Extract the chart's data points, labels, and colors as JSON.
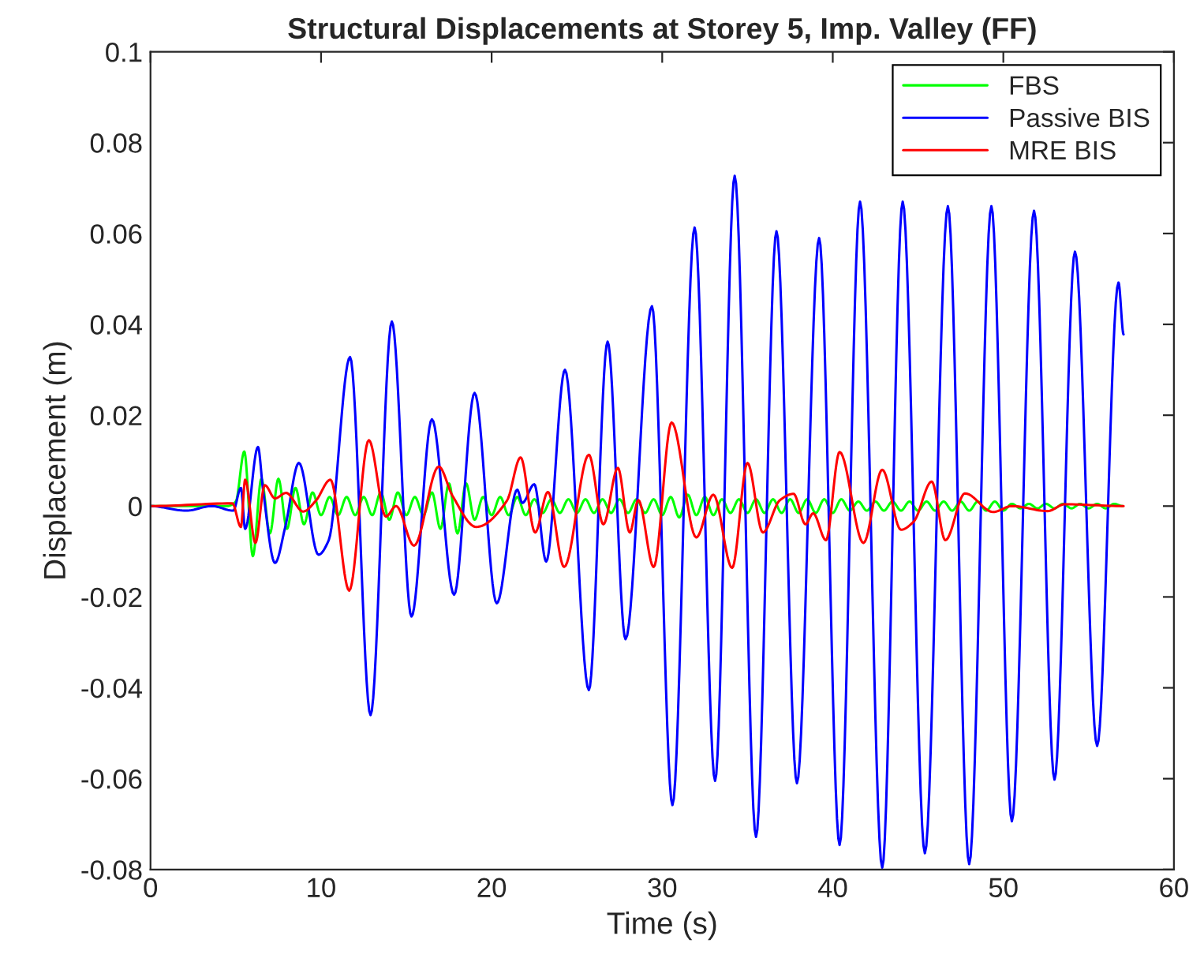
{
  "chart_data": {
    "type": "line",
    "title": "Structural Displacements at Storey 5, Imp. Valley (FF)",
    "xlabel": "Time (s)",
    "ylabel": "Displacement (m)",
    "xlim": [
      0,
      60
    ],
    "xticks": [
      0,
      10,
      20,
      30,
      40,
      50,
      60
    ],
    "ylim": [
      -0.08,
      0.1
    ],
    "yticks": [
      -0.08,
      -0.06,
      -0.04,
      -0.02,
      0,
      0.02,
      0.04,
      0.06,
      0.08,
      0.1
    ],
    "grid": false,
    "legend": "top right",
    "line_style": "solid",
    "marker": "none",
    "series": [
      {
        "name": "FBS",
        "color": "#00ff00",
        "x": [
          0,
          4.5,
          5.0,
          5.5,
          6.0,
          6.5,
          7.0,
          7.5,
          8.0,
          8.5,
          9.0,
          9.5,
          10.0,
          10.5,
          11.0,
          11.5,
          12.0,
          12.5,
          13.0,
          13.5,
          14.0,
          14.5,
          15.0,
          15.5,
          16.0,
          16.5,
          17.0,
          17.5,
          18.0,
          18.5,
          19.0,
          19.5,
          20.0,
          20.5,
          21.0,
          21.5,
          22.0,
          22.5,
          23.0,
          23.5,
          24.0,
          24.5,
          25.0,
          25.5,
          26.0,
          26.5,
          27.0,
          27.5,
          28.0,
          28.5,
          29.0,
          29.5,
          30.0,
          30.5,
          31.0,
          31.5,
          32.0,
          32.5,
          33.0,
          33.5,
          34.0,
          34.5,
          35.0,
          35.5,
          36.0,
          36.5,
          37.0,
          37.5,
          38.0,
          38.5,
          39.0,
          39.5,
          40.0,
          40.5,
          41.0,
          41.5,
          42.0,
          42.5,
          43.0,
          43.5,
          44.0,
          44.5,
          45.0,
          45.5,
          46.0,
          46.5,
          47.0,
          47.5,
          48.0,
          48.5,
          49.0,
          49.5,
          50.0,
          50.5,
          51.0,
          51.5,
          52.0,
          52.5,
          53.0,
          53.5,
          54.0,
          54.5,
          55.0,
          55.5,
          56.0,
          56.5,
          57.0
        ],
        "values": [
          0,
          0,
          0.001,
          0.012,
          -0.011,
          0.006,
          -0.006,
          0.006,
          -0.005,
          0.004,
          -0.004,
          0.003,
          -0.002,
          0.002,
          -0.002,
          0.002,
          -0.002,
          0.002,
          -0.002,
          0.003,
          -0.003,
          0.003,
          -0.002,
          0.002,
          -0.002,
          0.003,
          -0.005,
          0.005,
          -0.006,
          0.005,
          -0.003,
          0.002,
          -0.002,
          0.002,
          -0.002,
          0.002,
          -0.002,
          0.0015,
          -0.0015,
          0.0015,
          -0.0015,
          0.0015,
          -0.0015,
          0.0015,
          -0.0015,
          0.0015,
          -0.0015,
          0.0015,
          -0.0015,
          0.0015,
          -0.0015,
          0.0015,
          -0.002,
          0.002,
          -0.0025,
          0.0025,
          -0.002,
          0.002,
          -0.002,
          0.0015,
          -0.0015,
          0.0015,
          -0.0015,
          0.0015,
          -0.0015,
          0.0015,
          -0.0015,
          0.0015,
          -0.0015,
          0.0015,
          -0.0015,
          0.0015,
          -0.0015,
          0.0015,
          -0.001,
          0.001,
          -0.001,
          0.001,
          -0.001,
          0.001,
          -0.001,
          0.001,
          -0.001,
          0.001,
          -0.001,
          0.001,
          -0.001,
          0.001,
          -0.001,
          0.001,
          -0.001,
          0.001,
          -0.001,
          0.0005,
          -0.0005,
          0.0005,
          -0.0005,
          0.0005,
          -0.0005,
          0.0005,
          -0.0005,
          0.0005,
          -0.0005,
          0.0005,
          -0.0005,
          0.0005,
          0
        ]
      },
      {
        "name": "Passive BIS",
        "color": "#0000ff",
        "x": [
          0,
          2.1,
          3.6,
          4.85,
          5.3,
          5.55,
          6.3,
          6.6,
          7.3,
          7.9,
          8.7,
          9.85,
          10.45,
          11.7,
          12.9,
          14.15,
          15.3,
          16.5,
          17.8,
          19.0,
          20.3,
          21.5,
          21.8,
          22.5,
          23.2,
          24.3,
          25.7,
          26.8,
          27.85,
          29.4,
          30.6,
          31.9,
          33.1,
          34.25,
          35.5,
          36.7,
          37.9,
          39.2,
          40.4,
          41.6,
          42.9,
          44.1,
          45.4,
          46.75,
          48.0,
          49.3,
          50.5,
          51.8,
          53.0,
          54.2,
          55.5,
          56.75,
          57.05
        ],
        "values": [
          0,
          -0.001,
          0,
          -0.001,
          0.004,
          -0.005,
          0.013,
          0.0035,
          -0.0125,
          -0.0046,
          0.0095,
          -0.0107,
          -0.0075,
          0.0328,
          -0.046,
          0.0406,
          -0.0243,
          0.0191,
          -0.0195,
          0.0249,
          -0.0214,
          0.0036,
          0.0007,
          0.0048,
          -0.0122,
          0.03,
          -0.0405,
          0.0362,
          -0.0293,
          0.044,
          -0.0658,
          0.0613,
          -0.0605,
          0.0727,
          -0.0728,
          0.0605,
          -0.061,
          0.059,
          -0.0746,
          0.067,
          -0.0796,
          0.067,
          -0.0764,
          0.066,
          -0.0788,
          0.066,
          -0.0694,
          0.065,
          -0.0602,
          0.056,
          -0.0528,
          0.0492,
          0.0378
        ]
      },
      {
        "name": "MRE BIS",
        "color": "#ff0000",
        "x": [
          0,
          4.8,
          5.3,
          5.55,
          6.15,
          6.7,
          7.3,
          7.95,
          8.95,
          9.7,
          10.55,
          11.65,
          12.8,
          13.8,
          14.4,
          15.45,
          16.9,
          17.7,
          19.1,
          20.9,
          21.7,
          22.55,
          23.3,
          24.25,
          25.7,
          26.55,
          27.4,
          28.1,
          28.6,
          29.5,
          30.55,
          32.0,
          33.0,
          34.1,
          35.0,
          35.9,
          36.9,
          37.7,
          38.4,
          38.85,
          39.6,
          40.4,
          41.8,
          42.9,
          44.0,
          44.75,
          45.8,
          46.6,
          47.75,
          49.4,
          50.5,
          52.6,
          53.6,
          57.05
        ],
        "values": [
          0,
          0.0006,
          -0.0046,
          0.0058,
          -0.0081,
          0.0046,
          0.0017,
          0.0029,
          -0.0012,
          0.0012,
          0.0058,
          -0.0186,
          0.0145,
          -0.0023,
          0,
          -0.0087,
          0.0087,
          0.0023,
          -0.0046,
          0.0012,
          0.0107,
          -0.0058,
          0.0031,
          -0.0134,
          0.0113,
          -0.004,
          0.0084,
          -0.0058,
          0.0013,
          -0.0134,
          0.0184,
          -0.0069,
          0.0025,
          -0.0136,
          0.0095,
          -0.0058,
          0.0013,
          0.0027,
          -0.004,
          -0.0016,
          -0.0075,
          0.0119,
          -0.0081,
          0.008,
          -0.0052,
          -0.0034,
          0.0054,
          -0.0075,
          0.0028,
          -0.0013,
          0,
          -0.0011,
          0.0004,
          0
        ]
      }
    ]
  }
}
